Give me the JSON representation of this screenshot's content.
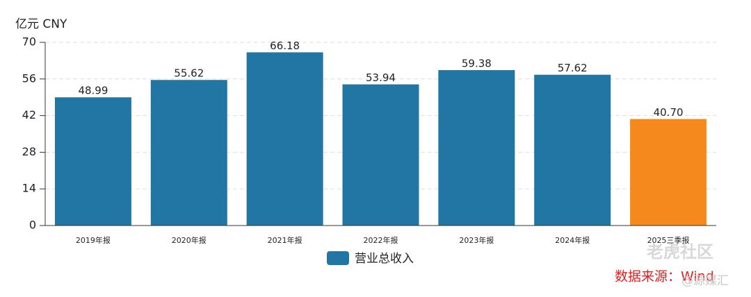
{
  "chart_data": {
    "type": "bar",
    "y_label": "亿元  CNY",
    "categories": [
      "2019年报",
      "2020年报",
      "2021年报",
      "2022年报",
      "2023年报",
      "2024年报",
      "2025三季报"
    ],
    "series": [
      {
        "name": "营业总收入",
        "color": "#2276a3",
        "values": [
          48.99,
          55.62,
          66.18,
          53.94,
          59.38,
          57.62,
          40.7
        ],
        "value_labels": [
          "48.99",
          "55.62",
          "66.18",
          "53.94",
          "59.38",
          "57.62",
          "40.70"
        ],
        "colors": [
          "#2276a3",
          "#2276a3",
          "#2276a3",
          "#2276a3",
          "#2276a3",
          "#2276a3",
          "#f5891e"
        ]
      }
    ],
    "ylim": [
      0,
      70
    ],
    "yticks": [
      0,
      14,
      28,
      42,
      56,
      70
    ],
    "grid": true,
    "source": "数据来源：Wind",
    "watermarks": [
      "老虎社区",
      "@源媒汇"
    ]
  }
}
